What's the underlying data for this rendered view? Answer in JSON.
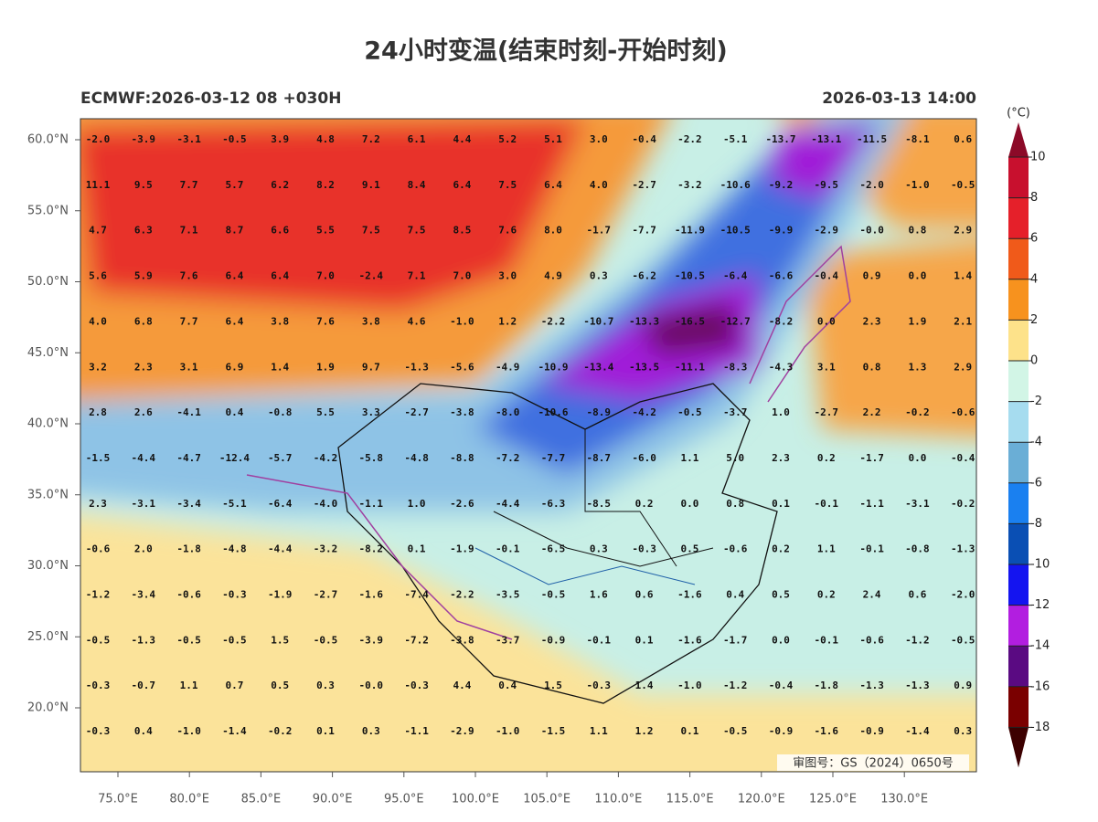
{
  "header": {
    "title": "24小时变温(结束时刻-开始时刻)",
    "left": "ECMWF:2026-03-12 08 +030H",
    "right": "2026-03-13 14:00"
  },
  "map": {
    "lat_labels": [
      "60.0°N",
      "55.0°N",
      "50.0°N",
      "45.0°N",
      "40.0°N",
      "35.0°N",
      "30.0°N",
      "25.0°N",
      "20.0°N"
    ],
    "lon_labels": [
      "75.0°E",
      "80.0°E",
      "85.0°E",
      "90.0°E",
      "95.0°E",
      "100.0°E",
      "105.0°E",
      "110.0°E",
      "115.0°E",
      "120.0°E",
      "125.0°E",
      "130.0°E"
    ],
    "grid": [
      [
        "-2.0",
        "-3.9",
        "-3.1",
        "-0.5",
        "3.9",
        "4.8",
        "7.2",
        "6.1",
        "4.4",
        "5.2",
        "5.1",
        "3.0",
        "-0.4",
        "-2.2",
        "-5.1",
        "-13.7",
        "-13.1",
        "-11.5",
        "-8.1",
        "0.6"
      ],
      [
        "11.1",
        "9.5",
        "7.7",
        "5.7",
        "6.2",
        "8.2",
        "9.1",
        "8.4",
        "6.4",
        "7.5",
        "6.4",
        "4.0",
        "-2.7",
        "-3.2",
        "-10.6",
        "-9.2",
        "-9.5",
        "-2.0",
        "-1.0",
        "-0.5"
      ],
      [
        "4.7",
        "6.3",
        "7.1",
        "8.7",
        "6.6",
        "5.5",
        "7.5",
        "7.5",
        "8.5",
        "7.6",
        "8.0",
        "-1.7",
        "-7.7",
        "-11.9",
        "-10.5",
        "-9.9",
        "-2.9",
        "-0.0",
        "0.8",
        "2.9"
      ],
      [
        "5.6",
        "5.9",
        "7.6",
        "6.4",
        "6.4",
        "7.0",
        "-2.4",
        "7.1",
        "7.0",
        "3.0",
        "4.9",
        "0.3",
        "-6.2",
        "-10.5",
        "-6.4",
        "-6.6",
        "-0.4",
        "0.9",
        "0.0",
        "1.4"
      ],
      [
        "4.0",
        "6.8",
        "7.7",
        "6.4",
        "3.8",
        "7.6",
        "3.8",
        "4.6",
        "-1.0",
        "1.2",
        "-2.2",
        "-10.7",
        "-13.3",
        "-16.5",
        "-12.7",
        "-8.2",
        "0.0",
        "2.3",
        "1.9",
        "2.1"
      ],
      [
        "3.2",
        "2.3",
        "3.1",
        "6.9",
        "1.4",
        "1.9",
        "9.7",
        "-1.3",
        "-5.6",
        "-4.9",
        "-10.9",
        "-13.4",
        "-13.5",
        "-11.1",
        "-8.3",
        "-4.3",
        "3.1",
        "0.8",
        "1.3",
        "2.9"
      ],
      [
        "2.8",
        "2.6",
        "-4.1",
        "0.4",
        "-0.8",
        "5.5",
        "3.3",
        "-2.7",
        "-3.8",
        "-8.0",
        "-10.6",
        "-8.9",
        "-4.2",
        "-0.5",
        "-3.7",
        "1.0",
        "-2.7",
        "2.2",
        "-0.2",
        "-0.6"
      ],
      [
        "-1.5",
        "-4.4",
        "-4.7",
        "-12.4",
        "-5.7",
        "-4.2",
        "-5.8",
        "-4.8",
        "-8.8",
        "-7.2",
        "-7.7",
        "-8.7",
        "-6.0",
        "1.1",
        "5.0",
        "2.3",
        "0.2",
        "-1.7",
        "0.0",
        "-0.4"
      ],
      [
        "2.3",
        "-3.1",
        "-3.4",
        "-5.1",
        "-6.4",
        "-4.0",
        "-1.1",
        "1.0",
        "-2.6",
        "-4.4",
        "-6.3",
        "-8.5",
        "0.2",
        "0.0",
        "0.8",
        "0.1",
        "-0.1",
        "-1.1",
        "-3.1",
        "-0.2"
      ],
      [
        "-0.6",
        "2.0",
        "-1.8",
        "-4.8",
        "-4.4",
        "-3.2",
        "-8.2",
        "0.1",
        "-1.9",
        "-0.1",
        "-6.5",
        "0.3",
        "-0.3",
        "0.5",
        "-0.6",
        "0.2",
        "1.1",
        "-0.1",
        "-0.8",
        "-1.3"
      ],
      [
        "-1.2",
        "-3.4",
        "-0.6",
        "-0.3",
        "-1.9",
        "-2.7",
        "-1.6",
        "-7.4",
        "-2.2",
        "-3.5",
        "-0.5",
        "1.6",
        "0.6",
        "-1.6",
        "0.4",
        "0.5",
        "0.2",
        "2.4",
        "0.6",
        "-2.0"
      ],
      [
        "-0.5",
        "-1.3",
        "-0.5",
        "-0.5",
        "1.5",
        "-0.5",
        "-3.9",
        "-7.2",
        "-3.8",
        "-3.7",
        "-0.9",
        "-0.1",
        "0.1",
        "-1.6",
        "-1.7",
        "0.0",
        "-0.1",
        "-0.6",
        "-1.2",
        "-0.5"
      ],
      [
        "-0.3",
        "-0.7",
        "1.1",
        "0.7",
        "0.5",
        "0.3",
        "-0.0",
        "-0.3",
        "4.4",
        "0.4",
        "1.5",
        "-0.3",
        "1.4",
        "-1.0",
        "-1.2",
        "-0.4",
        "-1.8",
        "-1.3",
        "-1.3",
        "0.9"
      ],
      [
        "-0.3",
        "0.4",
        "-1.0",
        "-1.4",
        "-0.2",
        "0.1",
        "0.3",
        "-1.1",
        "-2.9",
        "-1.0",
        "-1.5",
        "1.1",
        "1.2",
        "0.1",
        "-0.5",
        "-0.9",
        "-1.6",
        "-0.9",
        "-1.4",
        "0.3"
      ]
    ],
    "watermark": "审图号：GS（2024）0650号"
  },
  "colorbar": {
    "unit": "(°C)",
    "levels": [
      10,
      8,
      6,
      4,
      2,
      0,
      -2,
      -4,
      -6,
      -8,
      -10,
      -12,
      -14,
      -16,
      -18
    ],
    "colors": [
      "#c8102e",
      "#e5202a",
      "#f05a1a",
      "#f7921e",
      "#fde28a",
      "#d2f5e6",
      "#a6dcef",
      "#6aaed6",
      "#1a80f0",
      "#0a4fb4",
      "#1414f0",
      "#b21ee0",
      "#5a0a82",
      "#7a0000"
    ],
    "over_color": "#8c0a28",
    "under_color": "#3c0000"
  }
}
